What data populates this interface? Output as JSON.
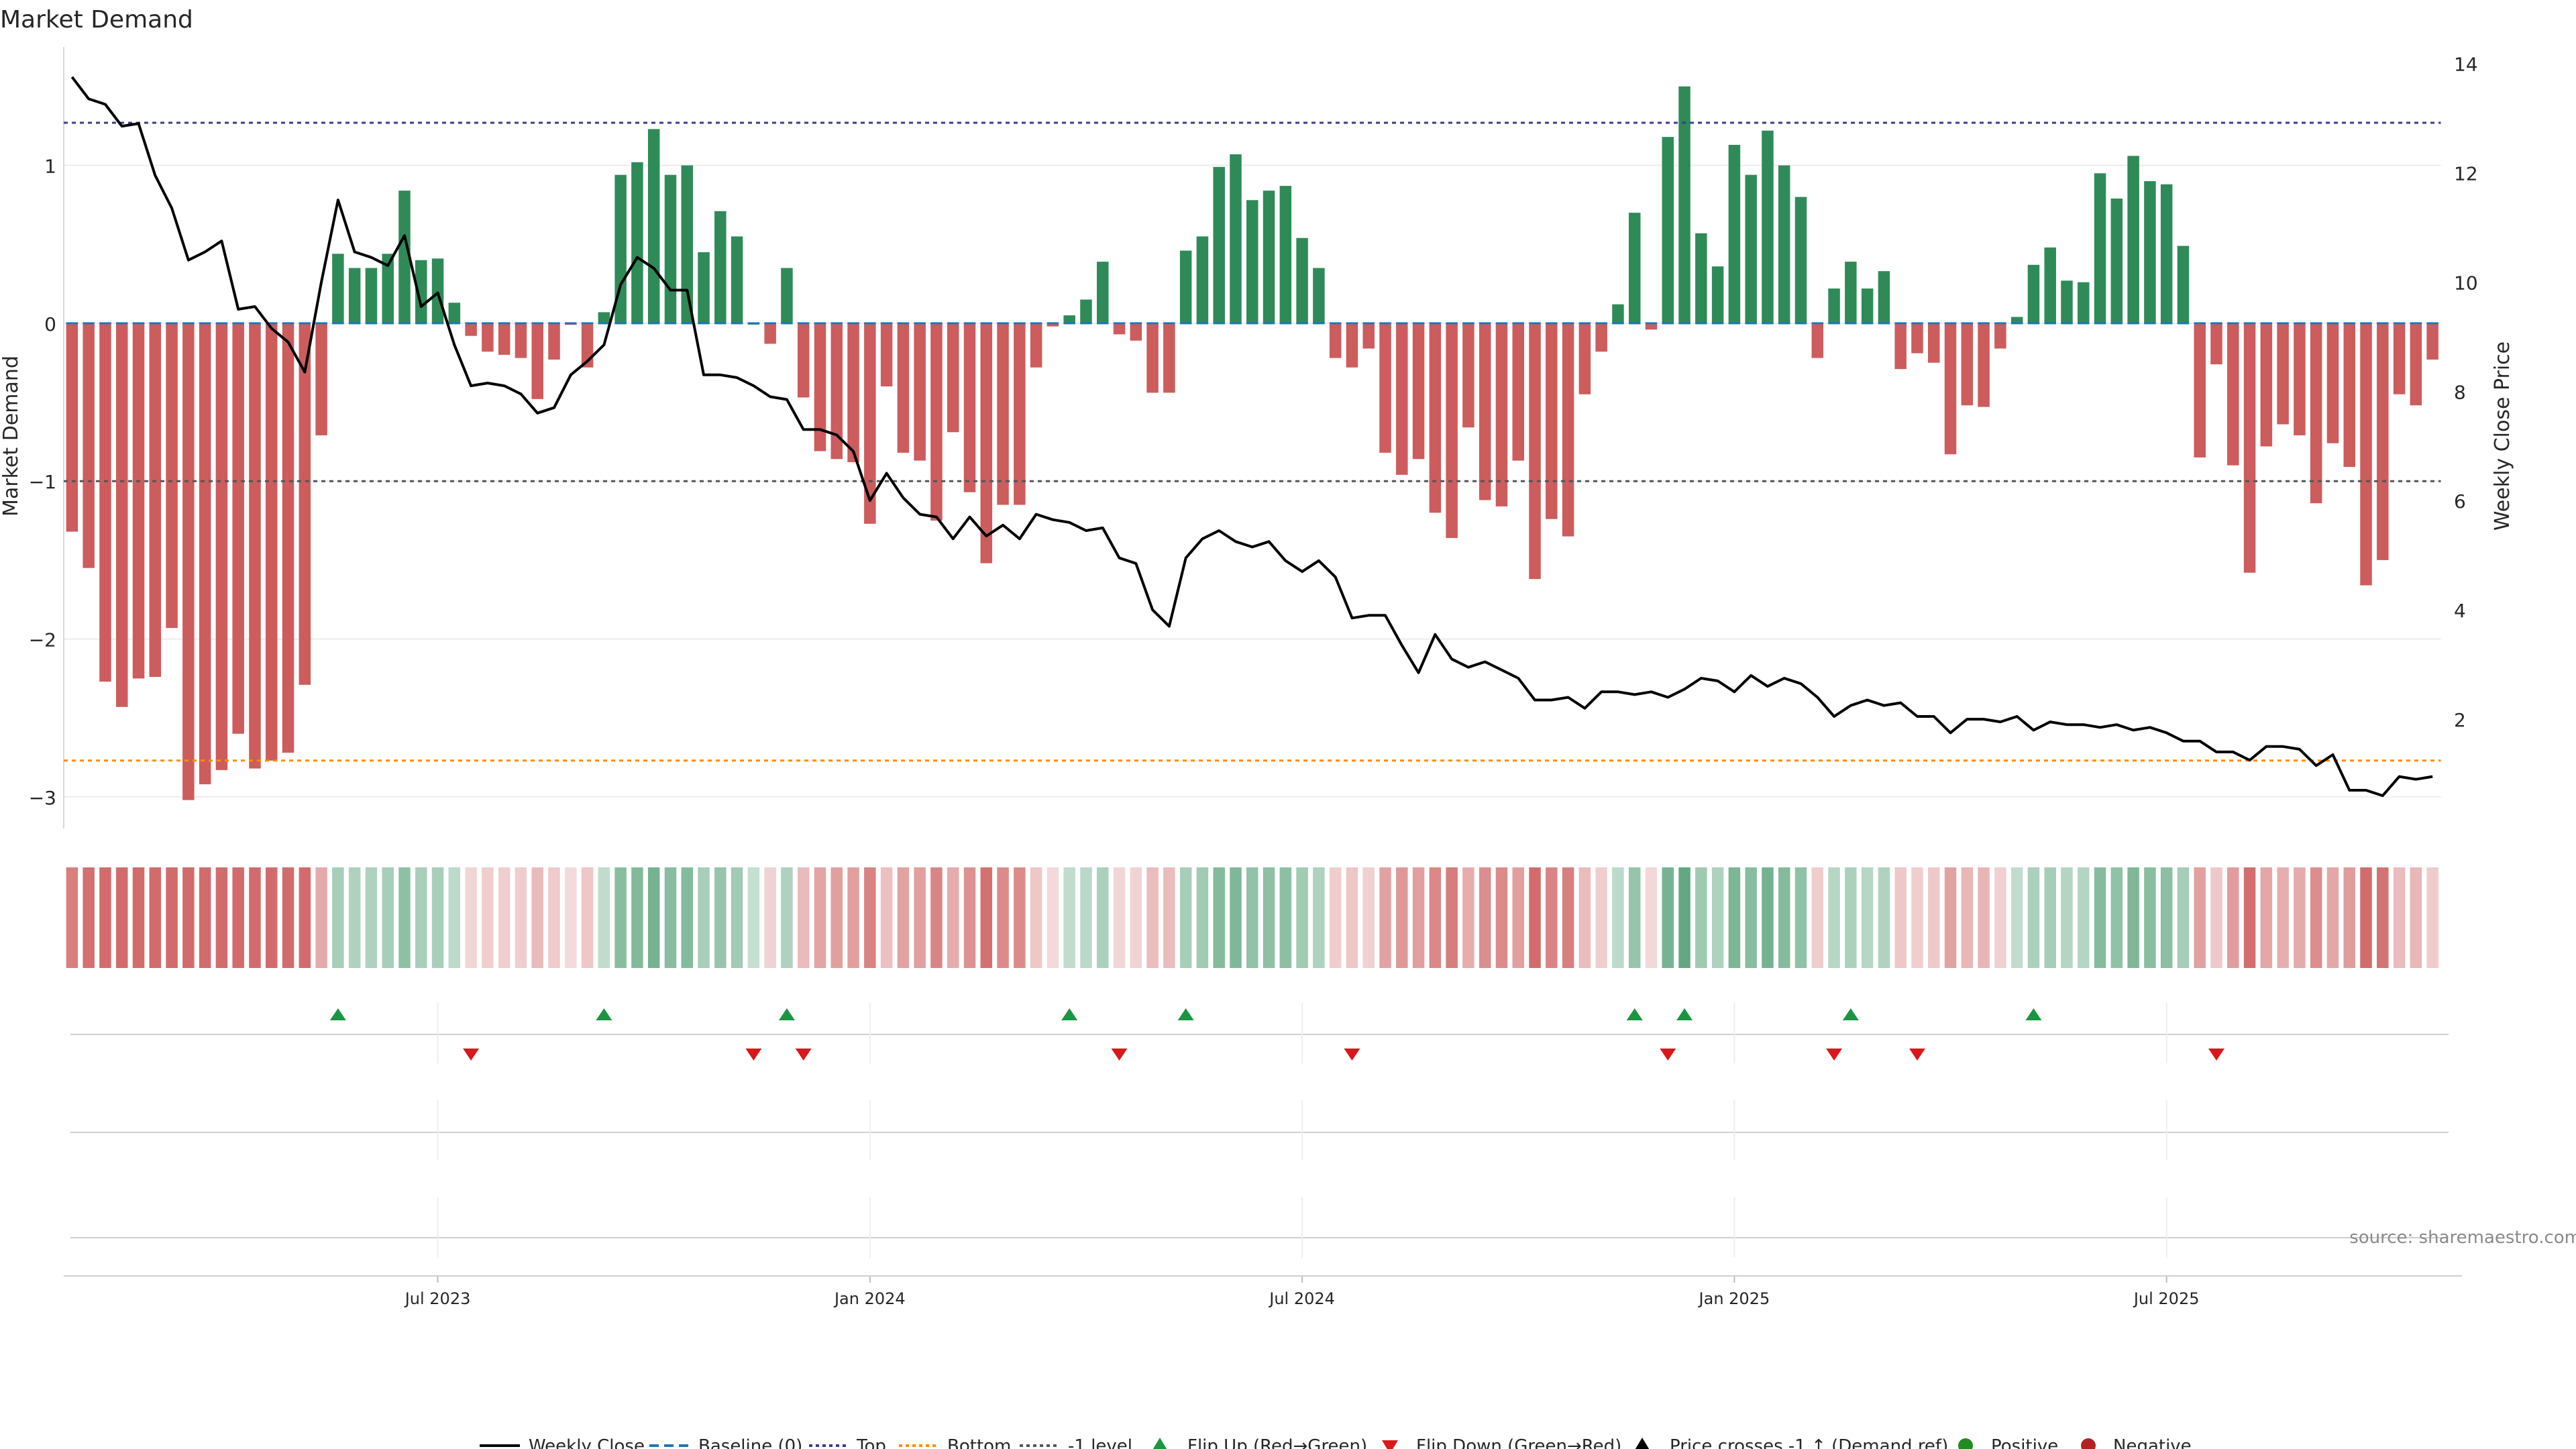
{
  "title": "Market Demand",
  "source": "source: sharemaestro.com",
  "axes": {
    "left_label": "Market Demand",
    "right_label": "Weekly Close Price",
    "left_ticks": [
      "1",
      "0",
      "−1",
      "−2",
      "−3"
    ],
    "left_tick_values": [
      1,
      0,
      -1,
      -2,
      -3
    ],
    "right_ticks": [
      "14",
      "12",
      "10",
      "8",
      "6",
      "4",
      "2"
    ],
    "right_tick_values": [
      14,
      12,
      10,
      8,
      6,
      4,
      2
    ],
    "x_ticks": [
      "Jul 2023",
      "Jan 2024",
      "Jul 2024",
      "Jan 2025",
      "Jul 2025"
    ]
  },
  "legend": {
    "weekly_close": "Weekly Close",
    "baseline": "Baseline (0)",
    "top": "Top",
    "bottom": "Bottom",
    "minus1": "-1 level",
    "flip_up": "Flip Up (Red→Green)",
    "flip_down": "Flip Down (Green→Red)",
    "price_cross": "Price crosses -1 ↑ (Demand ref)",
    "positive": "Positive",
    "negative": "Negative"
  },
  "colors": {
    "positive": "#2e8b57",
    "negative": "#cd5c5c",
    "price": "#000000",
    "baseline": "#1f77b4",
    "top": "#3b3b8f",
    "bottom": "#ff8c00",
    "minus1": "#555555",
    "flip_up": "#1a9641",
    "flip_down": "#d7191c",
    "legend_positive": "#228b22",
    "legend_negative": "#b22222"
  },
  "chart_data": {
    "type": "bar",
    "levels": {
      "top": 1.27,
      "bottom": -2.77,
      "minus1": -1.0,
      "baseline": 0
    },
    "ylim_left": [
      -3.2,
      1.75
    ],
    "ylim_right": [
      0,
      14.3
    ],
    "demand": [
      -1.32,
      -1.55,
      -2.27,
      -2.43,
      -2.25,
      -2.24,
      -1.93,
      -3.02,
      -2.92,
      -2.83,
      -2.6,
      -2.82,
      -2.77,
      -2.72,
      -2.29,
      -0.71,
      0.44,
      0.35,
      0.35,
      0.44,
      0.84,
      0.4,
      0.41,
      0.13,
      -0.08,
      -0.18,
      -0.2,
      -0.22,
      -0.48,
      -0.23,
      -0.01,
      -0.28,
      0.07,
      0.94,
      1.02,
      1.23,
      0.94,
      1.0,
      0.45,
      0.71,
      0.55,
      0.0,
      -0.13,
      0.35,
      -0.47,
      -0.81,
      -0.86,
      -0.88,
      -1.27,
      -0.4,
      -0.82,
      -0.87,
      -1.25,
      -0.69,
      -1.07,
      -1.52,
      -1.15,
      -1.15,
      -0.28,
      -0.02,
      0.05,
      0.15,
      0.39,
      -0.07,
      -0.11,
      -0.44,
      -0.44,
      0.46,
      0.55,
      0.99,
      1.07,
      0.78,
      0.84,
      0.87,
      0.54,
      0.35,
      -0.22,
      -0.28,
      -0.16,
      -0.82,
      -0.96,
      -0.86,
      -1.2,
      -1.36,
      -0.66,
      -1.12,
      -1.16,
      -0.87,
      -1.62,
      -1.24,
      -1.35,
      -0.45,
      -0.18,
      0.12,
      0.7,
      -0.04,
      1.18,
      1.5,
      0.57,
      0.36,
      1.13,
      0.94,
      1.22,
      1.0,
      0.8,
      -0.22,
      0.22,
      0.39,
      0.22,
      0.33,
      -0.29,
      -0.19,
      -0.25,
      -0.83,
      -0.52,
      -0.53,
      -0.16,
      0.04,
      0.37,
      0.48,
      0.27,
      0.26,
      0.95,
      0.79,
      1.06,
      0.9,
      0.88,
      0.49,
      -0.85,
      -0.26,
      -0.9,
      -1.58,
      -0.78,
      -0.64,
      -0.71,
      -1.14,
      -0.76,
      -0.91,
      -1.66,
      -1.5,
      -0.45,
      -0.52,
      -0.23
    ],
    "price": [
      13.75,
      13.35,
      13.25,
      12.85,
      12.9,
      11.95,
      11.35,
      10.4,
      10.55,
      10.75,
      9.5,
      9.55,
      9.15,
      8.9,
      8.35,
      10.0,
      11.5,
      10.55,
      10.45,
      10.3,
      10.85,
      9.55,
      9.8,
      8.85,
      8.1,
      8.15,
      8.1,
      7.95,
      7.6,
      7.7,
      8.3,
      8.55,
      8.85,
      9.95,
      10.45,
      10.25,
      9.85,
      9.85,
      8.3,
      8.3,
      8.25,
      8.1,
      7.9,
      7.85,
      7.3,
      7.3,
      7.2,
      6.9,
      6.0,
      6.5,
      6.05,
      5.75,
      5.7,
      5.3,
      5.7,
      5.35,
      5.55,
      5.3,
      5.75,
      5.65,
      5.6,
      5.45,
      5.5,
      4.95,
      4.85,
      4.0,
      3.7,
      4.95,
      5.3,
      5.45,
      5.25,
      5.15,
      5.25,
      4.9,
      4.7,
      4.9,
      4.6,
      3.85,
      3.9,
      3.9,
      3.35,
      2.85,
      3.55,
      3.1,
      2.95,
      3.05,
      2.9,
      2.75,
      2.35,
      2.35,
      2.4,
      2.2,
      2.5,
      2.5,
      2.45,
      2.5,
      2.4,
      2.55,
      2.75,
      2.7,
      2.5,
      2.8,
      2.6,
      2.75,
      2.65,
      2.4,
      2.05,
      2.25,
      2.35,
      2.25,
      2.3,
      2.05,
      2.05,
      1.75,
      2.0,
      2.0,
      1.95,
      2.05,
      1.8,
      1.95,
      1.9,
      1.9,
      1.85,
      1.9,
      1.8,
      1.85,
      1.75,
      1.6,
      1.6,
      1.4,
      1.4,
      1.25,
      1.5,
      1.5,
      1.45,
      1.15,
      1.35,
      0.7,
      0.7,
      0.6,
      0.95,
      0.9,
      0.95
    ],
    "flip_up_weeks": [
      16,
      32,
      43,
      60,
      67,
      94,
      97,
      107,
      118
    ],
    "flip_down_weeks": [
      24,
      41,
      44,
      63,
      77,
      96,
      106,
      111,
      129
    ],
    "x_tick_weeks": [
      22,
      48,
      74,
      100,
      126
    ]
  }
}
